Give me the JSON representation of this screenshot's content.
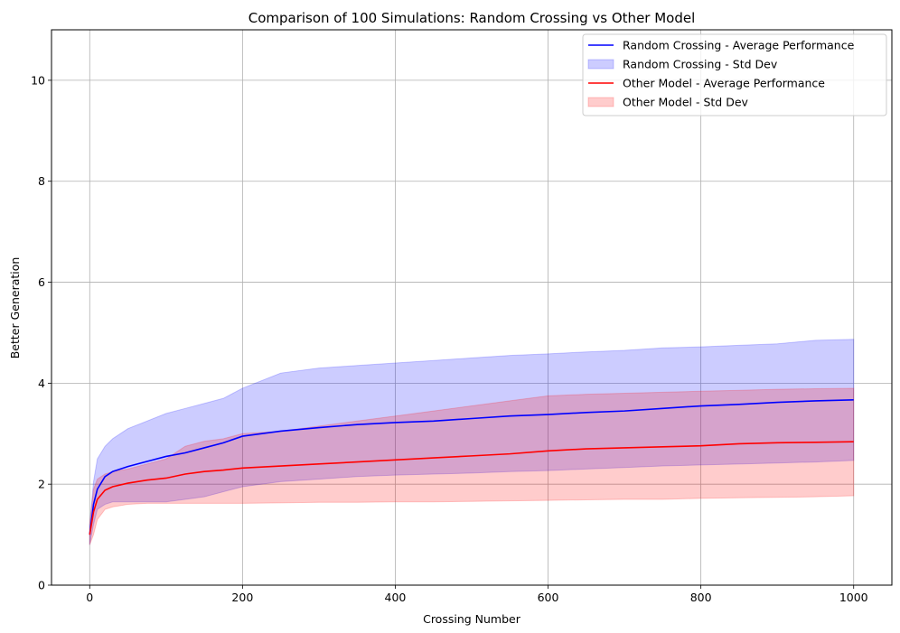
{
  "chart_data": {
    "type": "line",
    "title": "Comparison of 100 Simulations: Random Crossing vs Other Model",
    "xlabel": "Crossing Number",
    "ylabel": "Better Generation",
    "xlim": [
      -50,
      1050
    ],
    "ylim": [
      0,
      11
    ],
    "xticks": [
      0,
      200,
      400,
      600,
      800,
      1000
    ],
    "yticks": [
      0,
      2,
      4,
      6,
      8,
      10
    ],
    "grid": true,
    "legend_position": "top-right",
    "series": [
      {
        "name": "Random Crossing - Average Performance",
        "kind": "line",
        "color": "#0000ff",
        "x": [
          0,
          5,
          10,
          20,
          30,
          50,
          75,
          100,
          125,
          150,
          175,
          200,
          250,
          300,
          350,
          400,
          450,
          500,
          550,
          600,
          650,
          700,
          750,
          800,
          850,
          900,
          950,
          1000
        ],
        "y": [
          1.0,
          1.6,
          1.9,
          2.15,
          2.25,
          2.35,
          2.45,
          2.55,
          2.62,
          2.72,
          2.82,
          2.95,
          3.05,
          3.12,
          3.18,
          3.22,
          3.25,
          3.3,
          3.35,
          3.38,
          3.42,
          3.45,
          3.5,
          3.55,
          3.58,
          3.62,
          3.65,
          3.67
        ]
      },
      {
        "name": "Random Crossing - Std Dev",
        "kind": "band",
        "color": "#0000ff",
        "x": [
          0,
          5,
          10,
          20,
          30,
          50,
          75,
          100,
          125,
          150,
          175,
          200,
          250,
          300,
          350,
          400,
          450,
          500,
          550,
          600,
          650,
          700,
          750,
          800,
          850,
          900,
          950,
          1000
        ],
        "upper": [
          1.2,
          2.05,
          2.5,
          2.75,
          2.9,
          3.1,
          3.25,
          3.4,
          3.5,
          3.6,
          3.7,
          3.9,
          4.2,
          4.3,
          4.35,
          4.4,
          4.45,
          4.5,
          4.55,
          4.58,
          4.62,
          4.65,
          4.7,
          4.72,
          4.75,
          4.78,
          4.85,
          4.87
        ],
        "lower": [
          0.8,
          1.2,
          1.5,
          1.6,
          1.65,
          1.65,
          1.65,
          1.65,
          1.7,
          1.75,
          1.85,
          1.95,
          2.05,
          2.1,
          2.15,
          2.18,
          2.2,
          2.22,
          2.25,
          2.27,
          2.3,
          2.33,
          2.36,
          2.38,
          2.4,
          2.42,
          2.44,
          2.47
        ]
      },
      {
        "name": "Other Model - Average Performance",
        "kind": "line",
        "color": "#ff0000",
        "x": [
          0,
          5,
          10,
          20,
          30,
          50,
          75,
          100,
          125,
          150,
          175,
          200,
          250,
          300,
          350,
          400,
          450,
          500,
          550,
          600,
          650,
          700,
          750,
          800,
          850,
          900,
          950,
          1000
        ],
        "y": [
          1.0,
          1.45,
          1.7,
          1.88,
          1.95,
          2.02,
          2.08,
          2.12,
          2.2,
          2.25,
          2.28,
          2.32,
          2.36,
          2.4,
          2.44,
          2.48,
          2.52,
          2.56,
          2.6,
          2.66,
          2.7,
          2.72,
          2.74,
          2.76,
          2.8,
          2.82,
          2.83,
          2.84
        ]
      },
      {
        "name": "Other Model - Std Dev",
        "kind": "band",
        "color": "#ff0000",
        "x": [
          0,
          5,
          10,
          20,
          30,
          50,
          75,
          100,
          125,
          150,
          175,
          200,
          250,
          300,
          350,
          400,
          450,
          500,
          550,
          600,
          650,
          700,
          750,
          800,
          850,
          900,
          950,
          1000
        ],
        "upper": [
          1.2,
          1.9,
          2.1,
          2.2,
          2.25,
          2.3,
          2.4,
          2.5,
          2.75,
          2.85,
          2.9,
          3.0,
          3.05,
          3.15,
          3.25,
          3.35,
          3.45,
          3.55,
          3.65,
          3.75,
          3.78,
          3.8,
          3.82,
          3.84,
          3.86,
          3.88,
          3.89,
          3.9
        ],
        "lower": [
          0.8,
          1.0,
          1.3,
          1.5,
          1.55,
          1.6,
          1.62,
          1.62,
          1.62,
          1.62,
          1.62,
          1.62,
          1.63,
          1.64,
          1.64,
          1.65,
          1.65,
          1.66,
          1.67,
          1.68,
          1.69,
          1.7,
          1.7,
          1.72,
          1.73,
          1.74,
          1.75,
          1.77
        ]
      }
    ],
    "legend": [
      {
        "label": "Random Crossing - Average Performance",
        "kind": "line",
        "color": "#0000ff"
      },
      {
        "label": "Random Crossing - Std Dev",
        "kind": "band",
        "color": "#0000ff"
      },
      {
        "label": "Other Model - Average Performance",
        "kind": "line",
        "color": "#ff0000"
      },
      {
        "label": "Other Model - Std Dev",
        "kind": "band",
        "color": "#ff0000"
      }
    ]
  }
}
